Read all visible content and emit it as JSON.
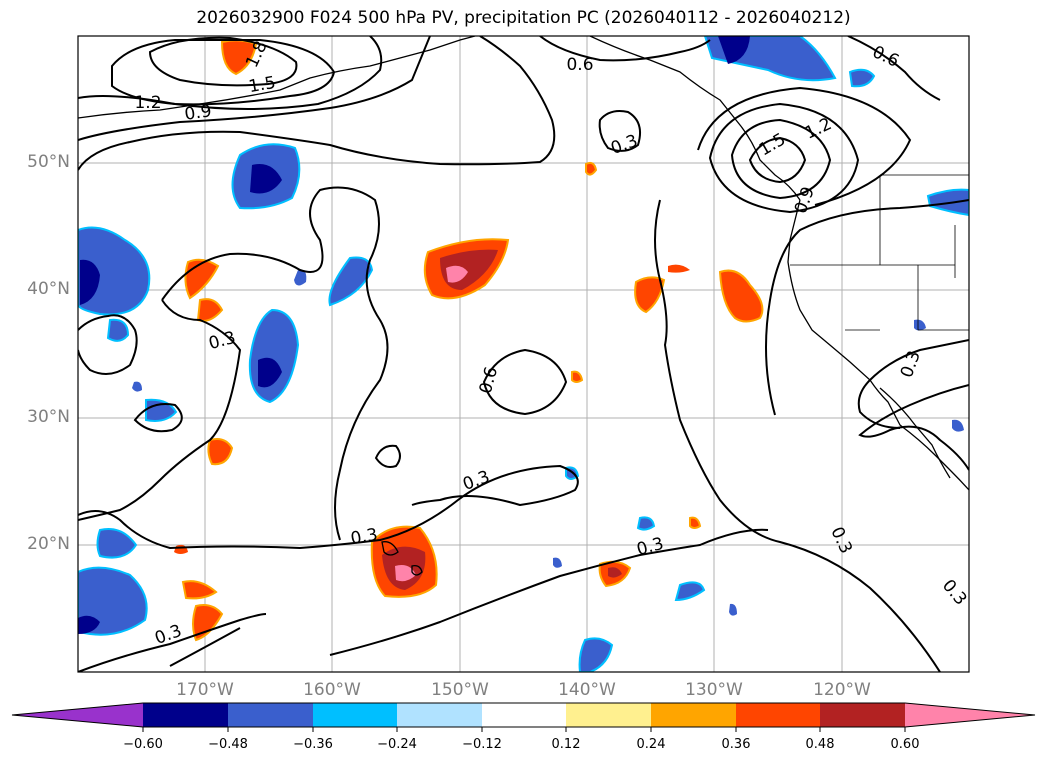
{
  "title": "2026032900 F024 500 hPa PV, precipitation PC (2026040112 - 2026040212)",
  "map": {
    "lat_labels": [
      "50°N",
      "40°N",
      "30°N",
      "20°N"
    ],
    "lon_labels": [
      "170°W",
      "160°W",
      "150°W",
      "140°W",
      "130°W",
      "120°W"
    ],
    "contour_labels": [
      "1.8",
      "1.5",
      "1.2",
      "0.9",
      "0.6",
      "0.6",
      "0.3",
      "1.2",
      "1.5",
      "0.9",
      "0.3",
      "0.6",
      "0.3",
      "0.3",
      "0.3",
      "0.3",
      "0.3",
      "0.3",
      "0.3"
    ]
  },
  "colorbar": {
    "ticks": [
      "−0.60",
      "−0.48",
      "−0.36",
      "−0.24",
      "−0.12",
      "0.12",
      "0.24",
      "0.36",
      "0.48",
      "0.60"
    ],
    "colors": [
      "#9932cc",
      "#00008b",
      "#3a5fcd",
      "#00bfff",
      "#b0e2ff",
      "#ffffff",
      "#fff08f",
      "#ffa500",
      "#ff4500",
      "#b22222",
      "#ff83aa"
    ]
  }
}
